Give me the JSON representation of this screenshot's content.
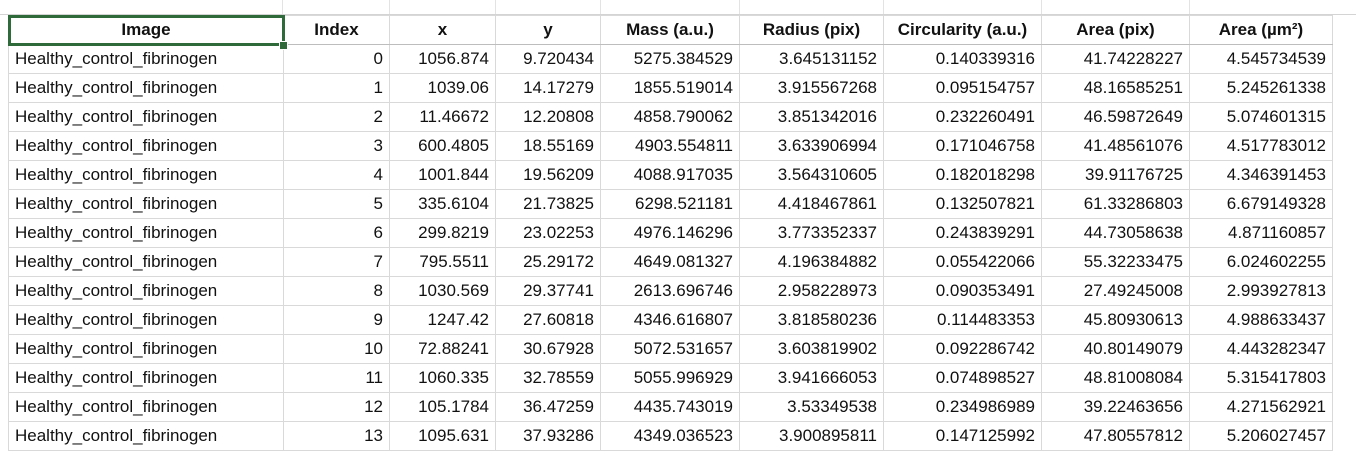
{
  "sheet": {
    "headers": [
      "Image",
      "Index",
      "x",
      "y",
      "Mass (a.u.)",
      "Radius (pix)",
      "Circularity (a.u.)",
      "Area (pix)",
      "Area (µm²)"
    ],
    "selected_cell": "Image",
    "accent_color": "#2f6b3a",
    "rows": [
      [
        "Healthy_control_fibrinogen",
        "0",
        "1056.874",
        "9.720434",
        "5275.384529",
        "3.645131152",
        "0.140339316",
        "41.74228227",
        "4.545734539"
      ],
      [
        "Healthy_control_fibrinogen",
        "1",
        "1039.06",
        "14.17279",
        "1855.519014",
        "3.915567268",
        "0.095154757",
        "48.16585251",
        "5.245261338"
      ],
      [
        "Healthy_control_fibrinogen",
        "2",
        "11.46672",
        "12.20808",
        "4858.790062",
        "3.851342016",
        "0.232260491",
        "46.59872649",
        "5.074601315"
      ],
      [
        "Healthy_control_fibrinogen",
        "3",
        "600.4805",
        "18.55169",
        "4903.554811",
        "3.633906994",
        "0.171046758",
        "41.48561076",
        "4.517783012"
      ],
      [
        "Healthy_control_fibrinogen",
        "4",
        "1001.844",
        "19.56209",
        "4088.917035",
        "3.564310605",
        "0.182018298",
        "39.91176725",
        "4.346391453"
      ],
      [
        "Healthy_control_fibrinogen",
        "5",
        "335.6104",
        "21.73825",
        "6298.521181",
        "4.418467861",
        "0.132507821",
        "61.33286803",
        "6.679149328"
      ],
      [
        "Healthy_control_fibrinogen",
        "6",
        "299.8219",
        "23.02253",
        "4976.146296",
        "3.773352337",
        "0.243839291",
        "44.73058638",
        "4.871160857"
      ],
      [
        "Healthy_control_fibrinogen",
        "7",
        "795.5511",
        "25.29172",
        "4649.081327",
        "4.196384882",
        "0.055422066",
        "55.32233475",
        "6.024602255"
      ],
      [
        "Healthy_control_fibrinogen",
        "8",
        "1030.569",
        "29.37741",
        "2613.696746",
        "2.958228973",
        "0.090353491",
        "27.49245008",
        "2.993927813"
      ],
      [
        "Healthy_control_fibrinogen",
        "9",
        "1247.42",
        "27.60818",
        "4346.616807",
        "3.818580236",
        "0.114483353",
        "45.80930613",
        "4.988633437"
      ],
      [
        "Healthy_control_fibrinogen",
        "10",
        "72.88241",
        "30.67928",
        "5072.531657",
        "3.603819902",
        "0.092286742",
        "40.80149079",
        "4.443282347"
      ],
      [
        "Healthy_control_fibrinogen",
        "11",
        "1060.335",
        "32.78559",
        "5055.996929",
        "3.941666053",
        "0.074898527",
        "48.81008084",
        "5.315417803"
      ],
      [
        "Healthy_control_fibrinogen",
        "12",
        "105.1784",
        "36.47259",
        "4435.743019",
        "3.53349538",
        "0.234986989",
        "39.22463656",
        "4.271562921"
      ],
      [
        "Healthy_control_fibrinogen",
        "13",
        "1095.631",
        "37.93286",
        "4349.036523",
        "3.900895811",
        "0.147125992",
        "47.80557812",
        "5.206027457"
      ]
    ]
  }
}
